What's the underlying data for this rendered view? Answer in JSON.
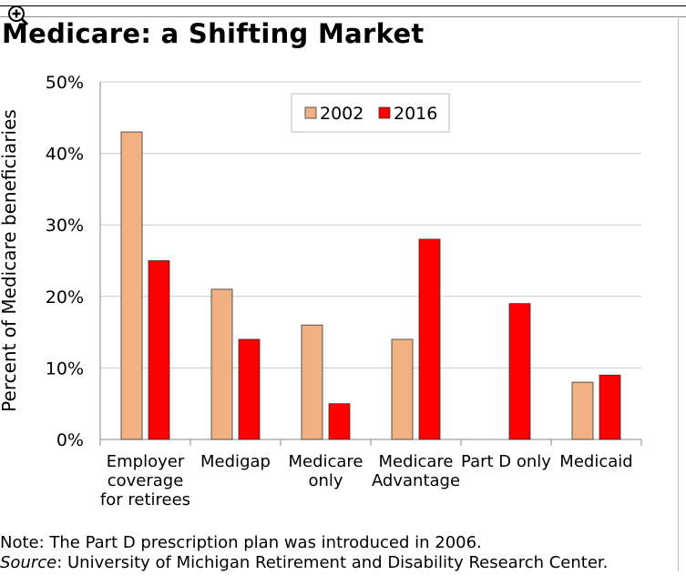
{
  "title": "Medicare: a Shifting Market",
  "notes": {
    "note": "Note: The Part D prescription plan was introduced in 2006.",
    "source_label": "Source",
    "source_text": ": University of Michigan Retirement and Disability Research Center."
  },
  "icons": {
    "zoom": "zoom-in-icon"
  },
  "chart_data": {
    "type": "bar",
    "title": "Medicare: a Shifting Market",
    "ylabel": "Percent of Medicare beneficiaries",
    "xlabel": "",
    "ylim": [
      0,
      50
    ],
    "yticks": [
      "0%",
      "10%",
      "20%",
      "30%",
      "40%",
      "50%"
    ],
    "grid": true,
    "legend_position": "top-right",
    "categories": [
      [
        "Employer",
        "coverage",
        "for retirees"
      ],
      [
        "Medigap"
      ],
      [
        "Medicare",
        "only"
      ],
      [
        "Medicare",
        "Advantage"
      ],
      [
        "Part D only"
      ],
      [
        "Medicaid"
      ]
    ],
    "series": [
      {
        "name": "2002",
        "color": "#f2b183",
        "values": [
          43,
          21,
          16,
          14,
          null,
          8
        ]
      },
      {
        "name": "2016",
        "color": "#ff0000",
        "values": [
          25,
          14,
          5,
          28,
          19,
          9
        ]
      }
    ]
  }
}
